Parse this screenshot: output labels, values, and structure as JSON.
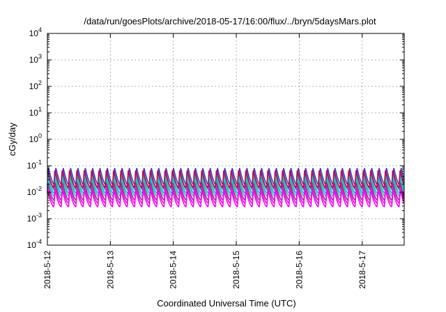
{
  "chart_data": {
    "type": "line",
    "title": "/data/run/goesPlots/archive/2018-05-17/16:00/flux/../bryn/5daysMars.plot",
    "xlabel": "Coordinated Universal Time (UTC)",
    "ylabel": "cGy/day",
    "yscale": "log",
    "ylim": [
      0.0001,
      10000
    ],
    "xlim": [
      "2018-05-12T00:00",
      "2018-05-17T16:00"
    ],
    "grid": true,
    "y_ticks": [
      {
        "value": 0.0001,
        "base": "10",
        "exp": "-4"
      },
      {
        "value": 0.001,
        "base": "10",
        "exp": "-3"
      },
      {
        "value": 0.01,
        "base": "10",
        "exp": "-2"
      },
      {
        "value": 0.1,
        "base": "10",
        "exp": "-1"
      },
      {
        "value": 1,
        "base": "10",
        "exp": "0"
      },
      {
        "value": 10,
        "base": "10",
        "exp": "1"
      },
      {
        "value": 100,
        "base": "10",
        "exp": "2"
      },
      {
        "value": 1000,
        "base": "10",
        "exp": "3"
      },
      {
        "value": 10000,
        "base": "10",
        "exp": "4"
      }
    ],
    "x_ticks": [
      {
        "value": "2018-05-12T00:00",
        "label": "2018-5-12"
      },
      {
        "value": "2018-05-13T00:00",
        "label": "2018-5-13"
      },
      {
        "value": "2018-05-14T00:00",
        "label": "2018-5-14"
      },
      {
        "value": "2018-05-15T00:00",
        "label": "2018-5-15"
      },
      {
        "value": "2018-05-16T00:00",
        "label": "2018-5-16"
      },
      {
        "value": "2018-05-17T00:00",
        "label": "2018-5-17"
      }
    ],
    "cycle_period_hours": 2.8,
    "series": [
      {
        "color": "#3a3acc",
        "peak": 0.085,
        "trough": 0.018
      },
      {
        "color": "#2a7ed0",
        "peak": 0.06,
        "trough": 0.012
      },
      {
        "color": "#1fb8c8",
        "peak": 0.04,
        "trough": 0.009
      },
      {
        "color": "#20c8a8",
        "peak": 0.03,
        "trough": 0.007
      },
      {
        "color": "#9a2a9a",
        "peak": 0.022,
        "trough": 0.005
      },
      {
        "color": "#d020c0",
        "peak": 0.016,
        "trough": 0.0038
      },
      {
        "color": "#ff00ff",
        "peak": 0.012,
        "trough": 0.0028
      },
      {
        "color": "#cc0044",
        "peak": 0.07,
        "trough": 0.015
      }
    ]
  }
}
